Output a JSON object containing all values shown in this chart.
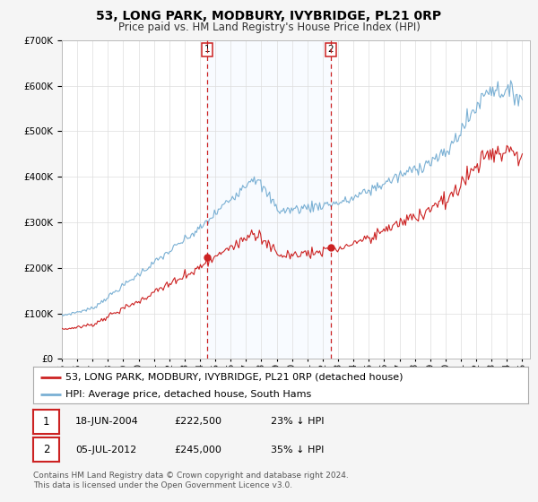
{
  "title": "53, LONG PARK, MODBURY, IVYBRIDGE, PL21 0RP",
  "subtitle": "Price paid vs. HM Land Registry's House Price Index (HPI)",
  "ylim": [
    0,
    700000
  ],
  "xlim_start": 1995.0,
  "xlim_end": 2025.5,
  "background_color": "#f5f5f5",
  "plot_bg_color": "#ffffff",
  "grid_color": "#dddddd",
  "hpi_line_color": "#7ab0d4",
  "price_line_color": "#cc2222",
  "marker1_date": 2004.46,
  "marker2_date": 2012.51,
  "marker1_price": 222500,
  "marker2_price": 245000,
  "marker1_label": "1",
  "marker2_label": "2",
  "shade_color": "#ddeeff",
  "legend_label_red": "53, LONG PARK, MODBURY, IVYBRIDGE, PL21 0RP (detached house)",
  "legend_label_blue": "HPI: Average price, detached house, South Hams",
  "table_row1": [
    "1",
    "18-JUN-2004",
    "£222,500",
    "23% ↓ HPI"
  ],
  "table_row2": [
    "2",
    "05-JUL-2012",
    "£245,000",
    "35% ↓ HPI"
  ],
  "footnote1": "Contains HM Land Registry data © Crown copyright and database right 2024.",
  "footnote2": "This data is licensed under the Open Government Licence v3.0.",
  "title_fontsize": 10,
  "subtitle_fontsize": 8.5,
  "tick_fontsize": 7.5,
  "legend_fontsize": 8,
  "table_fontsize": 8,
  "footnote_fontsize": 6.5
}
